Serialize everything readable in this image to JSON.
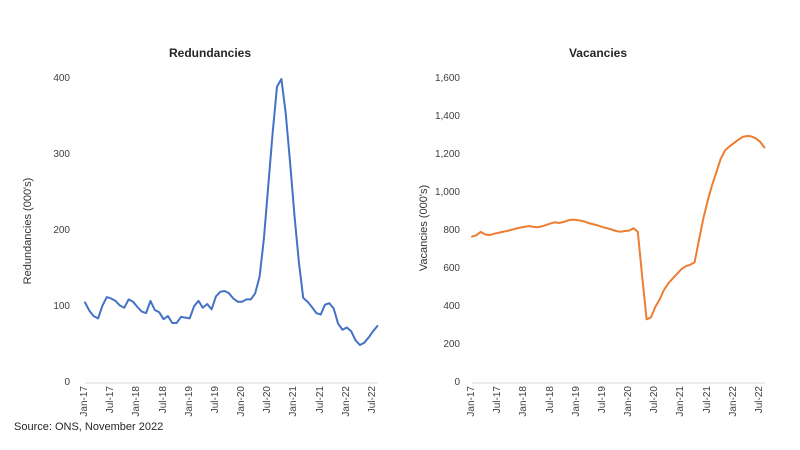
{
  "page": {
    "background": "#ffffff"
  },
  "source_note": "Source: ONS, November 2022",
  "chart_data": [
    {
      "type": "line",
      "title": "Redundancies",
      "ylabel": "Redundancies (000's)",
      "xlabel": "",
      "legend": false,
      "grid": false,
      "color": "#4472C4",
      "ylim": [
        0,
        400
      ],
      "yticks": [
        0,
        100,
        200,
        300,
        400
      ],
      "ytick_labels": [
        "0",
        "100",
        "200",
        "300",
        "400"
      ],
      "x_unit": "month",
      "x_range": [
        "Jan-17",
        "Aug-22"
      ],
      "x_tick_labels": [
        "Jan-17",
        "Jul-17",
        "Jan-18",
        "Jul-18",
        "Jan-19",
        "Jul-19",
        "Jan-20",
        "Jul-20",
        "Jan-21",
        "Jul-21",
        "Jan-22",
        "Jul-22"
      ],
      "values": [
        106,
        95,
        88,
        85,
        102,
        113,
        111,
        108,
        102,
        99,
        110,
        107,
        100,
        94,
        92,
        108,
        96,
        93,
        84,
        88,
        79,
        79,
        87,
        86,
        85,
        101,
        108,
        99,
        104,
        97,
        114,
        120,
        121,
        118,
        111,
        107,
        107,
        110,
        110,
        118,
        140,
        190,
        260,
        330,
        390,
        400,
        355,
        290,
        220,
        160,
        112,
        107,
        100,
        92,
        90,
        103,
        105,
        98,
        78,
        70,
        73,
        68,
        56,
        50,
        53,
        60,
        68,
        75
      ]
    },
    {
      "type": "line",
      "title": "Vacancies",
      "ylabel": "Vacancies (000's)",
      "xlabel": "",
      "legend": false,
      "grid": false,
      "color": "#ED7D31",
      "ylim": [
        0,
        1600
      ],
      "yticks": [
        0,
        200,
        400,
        600,
        800,
        1000,
        1200,
        1400,
        1600
      ],
      "ytick_labels": [
        "0",
        "200",
        "400",
        "600",
        "800",
        "1,000",
        "1,200",
        "1,400",
        "1,600"
      ],
      "x_unit": "month",
      "x_range": [
        "Jan-17",
        "Aug-22"
      ],
      "x_tick_labels": [
        "Jan-17",
        "Jul-17",
        "Jan-18",
        "Jul-18",
        "Jan-19",
        "Jul-19",
        "Jan-20",
        "Jul-20",
        "Jan-21",
        "Jul-21",
        "Jan-22",
        "Jul-22"
      ],
      "values": [
        770,
        778,
        795,
        782,
        778,
        785,
        790,
        795,
        800,
        806,
        812,
        818,
        822,
        826,
        822,
        820,
        824,
        832,
        840,
        846,
        842,
        848,
        856,
        860,
        858,
        854,
        848,
        840,
        834,
        828,
        820,
        814,
        808,
        800,
        796,
        800,
        802,
        815,
        795,
        560,
        335,
        345,
        400,
        440,
        490,
        525,
        550,
        575,
        600,
        615,
        622,
        635,
        750,
        865,
        960,
        1040,
        1110,
        1180,
        1225,
        1245,
        1262,
        1280,
        1295,
        1300,
        1298,
        1288,
        1270,
        1240
      ]
    }
  ]
}
